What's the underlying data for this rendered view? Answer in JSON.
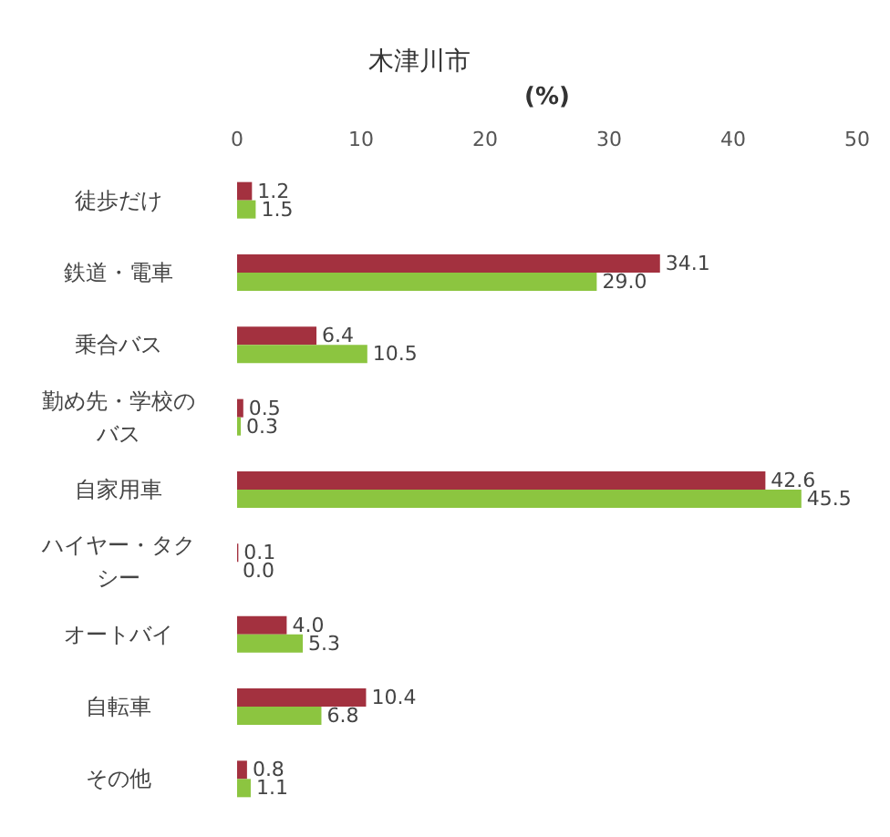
{
  "chart_data": {
    "type": "bar",
    "orientation": "horizontal",
    "title": "木津川市",
    "xlabel": "(%)",
    "categories": [
      "徒歩だけ",
      "鉄道・電車",
      "乗合バス",
      "勤め先・学校のバス",
      "自家用車",
      "ハイヤー・タクシー",
      "オートバイ",
      "自転車",
      "その他"
    ],
    "series": [
      {
        "color": "#a3313f",
        "values": [
          1.2,
          34.1,
          6.4,
          0.5,
          42.6,
          0.1,
          4.0,
          10.4,
          0.8
        ],
        "value_labels": [
          "1.2",
          "34.1",
          "6.4",
          "0.5",
          "42.6",
          "0.1",
          "4.0",
          "10.4",
          "0.8"
        ]
      },
      {
        "color": "#8cc540",
        "values": [
          1.5,
          29.0,
          10.5,
          0.3,
          45.5,
          0.0,
          5.3,
          6.8,
          1.1
        ],
        "value_labels": [
          "1.5",
          "29.0",
          "10.5",
          "0.3",
          "45.5",
          "0.0",
          "5.3",
          "6.8",
          "1.1"
        ]
      }
    ],
    "xlim": [
      0,
      50
    ],
    "xticks": [
      0,
      10,
      20,
      30,
      40,
      50
    ]
  }
}
